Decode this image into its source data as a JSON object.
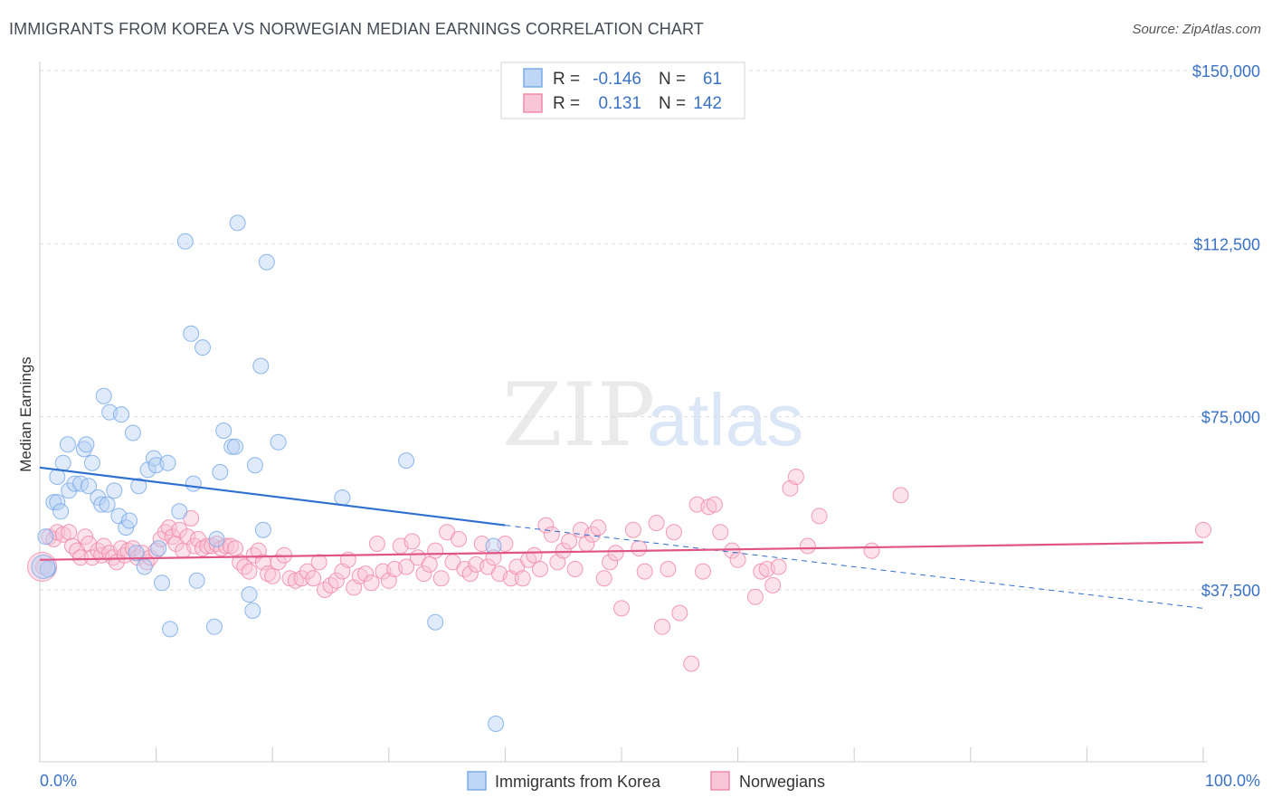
{
  "header": {
    "title": "IMMIGRANTS FROM KOREA VS NORWEGIAN MEDIAN EARNINGS CORRELATION CHART",
    "source": "Source: ZipAtlas.com"
  },
  "watermark": {
    "zip": "ZIP",
    "atlas": "atlas"
  },
  "legend_box": {
    "rows": [
      {
        "r_label": "R =",
        "r_value": "-0.146",
        "n_label": "N =",
        "n_value": "61"
      },
      {
        "r_label": "R =",
        "r_value": "0.131",
        "n_label": "N =",
        "n_value": "142"
      }
    ]
  },
  "chart_data": {
    "type": "scatter",
    "title": "IMMIGRANTS FROM KOREA VS NORWEGIAN MEDIAN EARNINGS CORRELATION CHART",
    "xlabel": "",
    "ylabel": "Median Earnings",
    "xlim": [
      0,
      100
    ],
    "ylim": [
      4000,
      155000
    ],
    "x_tick_labels": [
      "0.0%",
      "100.0%"
    ],
    "y_ticks": [
      37500,
      75000,
      112500,
      150000
    ],
    "y_tick_labels": [
      "$37,500",
      "$75,000",
      "$112,500",
      "$150,000"
    ],
    "grid": true,
    "legend_position": "top-center",
    "colors": {
      "korea": "#7aaae8",
      "norway": "#f08aaa",
      "korea_line": "#2f6fcf",
      "norway_line": "#e05585"
    },
    "series": [
      {
        "name": "Immigrants from Korea",
        "trend": {
          "x0": 0,
          "y0": 64000,
          "x1": 40,
          "y1": 51500,
          "dashed_to_x": 100,
          "dashed_to_y": 33500
        },
        "points": [
          [
            0.5,
            49000
          ],
          [
            0.7,
            42000
          ],
          [
            1.2,
            56500
          ],
          [
            1.5,
            56500
          ],
          [
            1.5,
            62000
          ],
          [
            1.8,
            54500
          ],
          [
            2.0,
            65000
          ],
          [
            2.4,
            69000
          ],
          [
            2.5,
            59000
          ],
          [
            3.0,
            60500
          ],
          [
            3.5,
            60500
          ],
          [
            3.8,
            68000
          ],
          [
            4.0,
            69000
          ],
          [
            4.2,
            60000
          ],
          [
            4.5,
            65000
          ],
          [
            5.0,
            57500
          ],
          [
            5.3,
            56000
          ],
          [
            5.5,
            79500
          ],
          [
            5.8,
            56000
          ],
          [
            6.0,
            76000
          ],
          [
            6.4,
            59000
          ],
          [
            6.8,
            53500
          ],
          [
            7.0,
            75500
          ],
          [
            7.4,
            51000
          ],
          [
            7.7,
            52500
          ],
          [
            8.0,
            71500
          ],
          [
            8.3,
            45500
          ],
          [
            8.5,
            60000
          ],
          [
            9.0,
            42500
          ],
          [
            9.3,
            63500
          ],
          [
            9.8,
            66000
          ],
          [
            10.0,
            64500
          ],
          [
            10.2,
            46500
          ],
          [
            10.5,
            39000
          ],
          [
            11.0,
            65000
          ],
          [
            11.2,
            29000
          ],
          [
            12.0,
            54500
          ],
          [
            12.5,
            113000
          ],
          [
            13.0,
            93000
          ],
          [
            13.2,
            60500
          ],
          [
            13.5,
            39500
          ],
          [
            14.0,
            90000
          ],
          [
            15.0,
            29500
          ],
          [
            15.2,
            48500
          ],
          [
            15.5,
            63000
          ],
          [
            15.8,
            72000
          ],
          [
            16.5,
            68500
          ],
          [
            16.8,
            68500
          ],
          [
            17.0,
            117000
          ],
          [
            18.0,
            36500
          ],
          [
            18.3,
            33000
          ],
          [
            18.5,
            64500
          ],
          [
            19.0,
            86000
          ],
          [
            19.2,
            50500
          ],
          [
            19.5,
            108500
          ],
          [
            20.5,
            69500
          ],
          [
            26.0,
            57500
          ],
          [
            31.5,
            65500
          ],
          [
            34.0,
            30500
          ],
          [
            39.0,
            47000
          ],
          [
            39.2,
            8500
          ]
        ]
      },
      {
        "name": "Norwegians",
        "trend": {
          "x0": 0,
          "y0": 44000,
          "x1": 100,
          "y1": 47800
        },
        "points": [
          [
            0.3,
            42500
          ],
          [
            0.8,
            49000
          ],
          [
            1.2,
            48500
          ],
          [
            1.5,
            50000
          ],
          [
            2.0,
            49500
          ],
          [
            2.5,
            50000
          ],
          [
            2.8,
            47000
          ],
          [
            3.2,
            46000
          ],
          [
            3.5,
            44500
          ],
          [
            3.9,
            49000
          ],
          [
            4.2,
            47500
          ],
          [
            4.5,
            44500
          ],
          [
            5.0,
            46000
          ],
          [
            5.3,
            45000
          ],
          [
            5.5,
            47000
          ],
          [
            6.0,
            45500
          ],
          [
            6.3,
            44500
          ],
          [
            6.6,
            43500
          ],
          [
            7.0,
            46500
          ],
          [
            7.3,
            45000
          ],
          [
            7.6,
            46000
          ],
          [
            8.0,
            46500
          ],
          [
            8.4,
            44500
          ],
          [
            8.8,
            45500
          ],
          [
            9.2,
            43500
          ],
          [
            9.5,
            44500
          ],
          [
            10.0,
            46000
          ],
          [
            10.4,
            48500
          ],
          [
            10.8,
            50000
          ],
          [
            11.1,
            51000
          ],
          [
            11.4,
            49000
          ],
          [
            11.7,
            47500
          ],
          [
            12.0,
            50500
          ],
          [
            12.3,
            46000
          ],
          [
            12.7,
            49000
          ],
          [
            13.0,
            53000
          ],
          [
            13.3,
            47000
          ],
          [
            13.6,
            48500
          ],
          [
            14.0,
            46500
          ],
          [
            14.4,
            47000
          ],
          [
            14.8,
            47000
          ],
          [
            15.2,
            47500
          ],
          [
            15.6,
            46500
          ],
          [
            16.0,
            47000
          ],
          [
            16.4,
            47000
          ],
          [
            16.8,
            46500
          ],
          [
            17.2,
            43500
          ],
          [
            17.6,
            42500
          ],
          [
            18.0,
            41500
          ],
          [
            18.4,
            45000
          ],
          [
            18.8,
            46000
          ],
          [
            19.2,
            43500
          ],
          [
            19.6,
            41000
          ],
          [
            20.0,
            40500
          ],
          [
            20.5,
            43500
          ],
          [
            21.0,
            45000
          ],
          [
            21.5,
            40000
          ],
          [
            22.0,
            39500
          ],
          [
            22.5,
            40000
          ],
          [
            23.0,
            41500
          ],
          [
            23.5,
            40000
          ],
          [
            24.0,
            43500
          ],
          [
            24.5,
            37500
          ],
          [
            25.0,
            38500
          ],
          [
            25.5,
            39500
          ],
          [
            26.0,
            41500
          ],
          [
            26.5,
            44000
          ],
          [
            27.0,
            38000
          ],
          [
            27.5,
            40500
          ],
          [
            28.0,
            41000
          ],
          [
            28.5,
            39000
          ],
          [
            29.0,
            47500
          ],
          [
            29.5,
            41500
          ],
          [
            30.0,
            39500
          ],
          [
            30.5,
            42000
          ],
          [
            31.0,
            47000
          ],
          [
            31.5,
            42500
          ],
          [
            32.0,
            48000
          ],
          [
            32.5,
            44500
          ],
          [
            33.0,
            41000
          ],
          [
            33.5,
            43000
          ],
          [
            34.0,
            46000
          ],
          [
            34.5,
            40000
          ],
          [
            35.0,
            50000
          ],
          [
            35.5,
            43500
          ],
          [
            36.0,
            48500
          ],
          [
            36.5,
            42000
          ],
          [
            37.0,
            41000
          ],
          [
            37.5,
            43000
          ],
          [
            38.0,
            47500
          ],
          [
            38.5,
            42500
          ],
          [
            39.0,
            44500
          ],
          [
            39.5,
            41000
          ],
          [
            40.0,
            47500
          ],
          [
            40.5,
            40000
          ],
          [
            41.0,
            42500
          ],
          [
            41.5,
            40000
          ],
          [
            42.0,
            44000
          ],
          [
            42.5,
            45000
          ],
          [
            43.0,
            42000
          ],
          [
            43.5,
            51500
          ],
          [
            44.0,
            49500
          ],
          [
            44.5,
            43500
          ],
          [
            45.0,
            46000
          ],
          [
            45.5,
            48000
          ],
          [
            46.0,
            42000
          ],
          [
            46.5,
            50500
          ],
          [
            47.0,
            47500
          ],
          [
            47.5,
            49500
          ],
          [
            48.0,
            51000
          ],
          [
            48.5,
            40000
          ],
          [
            49.0,
            43500
          ],
          [
            49.5,
            45500
          ],
          [
            50.0,
            33500
          ],
          [
            51.0,
            50500
          ],
          [
            51.5,
            46500
          ],
          [
            52.0,
            41500
          ],
          [
            53.0,
            52000
          ],
          [
            53.5,
            29500
          ],
          [
            54.0,
            42000
          ],
          [
            54.5,
            50000
          ],
          [
            55.0,
            32500
          ],
          [
            56.0,
            21500
          ],
          [
            56.5,
            56000
          ],
          [
            57.0,
            41500
          ],
          [
            57.5,
            55500
          ],
          [
            58.0,
            56000
          ],
          [
            58.5,
            50000
          ],
          [
            59.5,
            46000
          ],
          [
            60.0,
            44000
          ],
          [
            61.5,
            36000
          ],
          [
            62.0,
            41500
          ],
          [
            62.5,
            42000
          ],
          [
            63.0,
            38500
          ],
          [
            63.5,
            42500
          ],
          [
            64.5,
            59500
          ],
          [
            65.0,
            62000
          ],
          [
            66.0,
            47000
          ],
          [
            67.0,
            53500
          ],
          [
            71.5,
            46000
          ],
          [
            74.0,
            58000
          ],
          [
            100.0,
            50500
          ]
        ]
      }
    ]
  },
  "bottom_legend": {
    "korea_label": "Immigrants from Korea",
    "norway_label": "Norwegians"
  }
}
